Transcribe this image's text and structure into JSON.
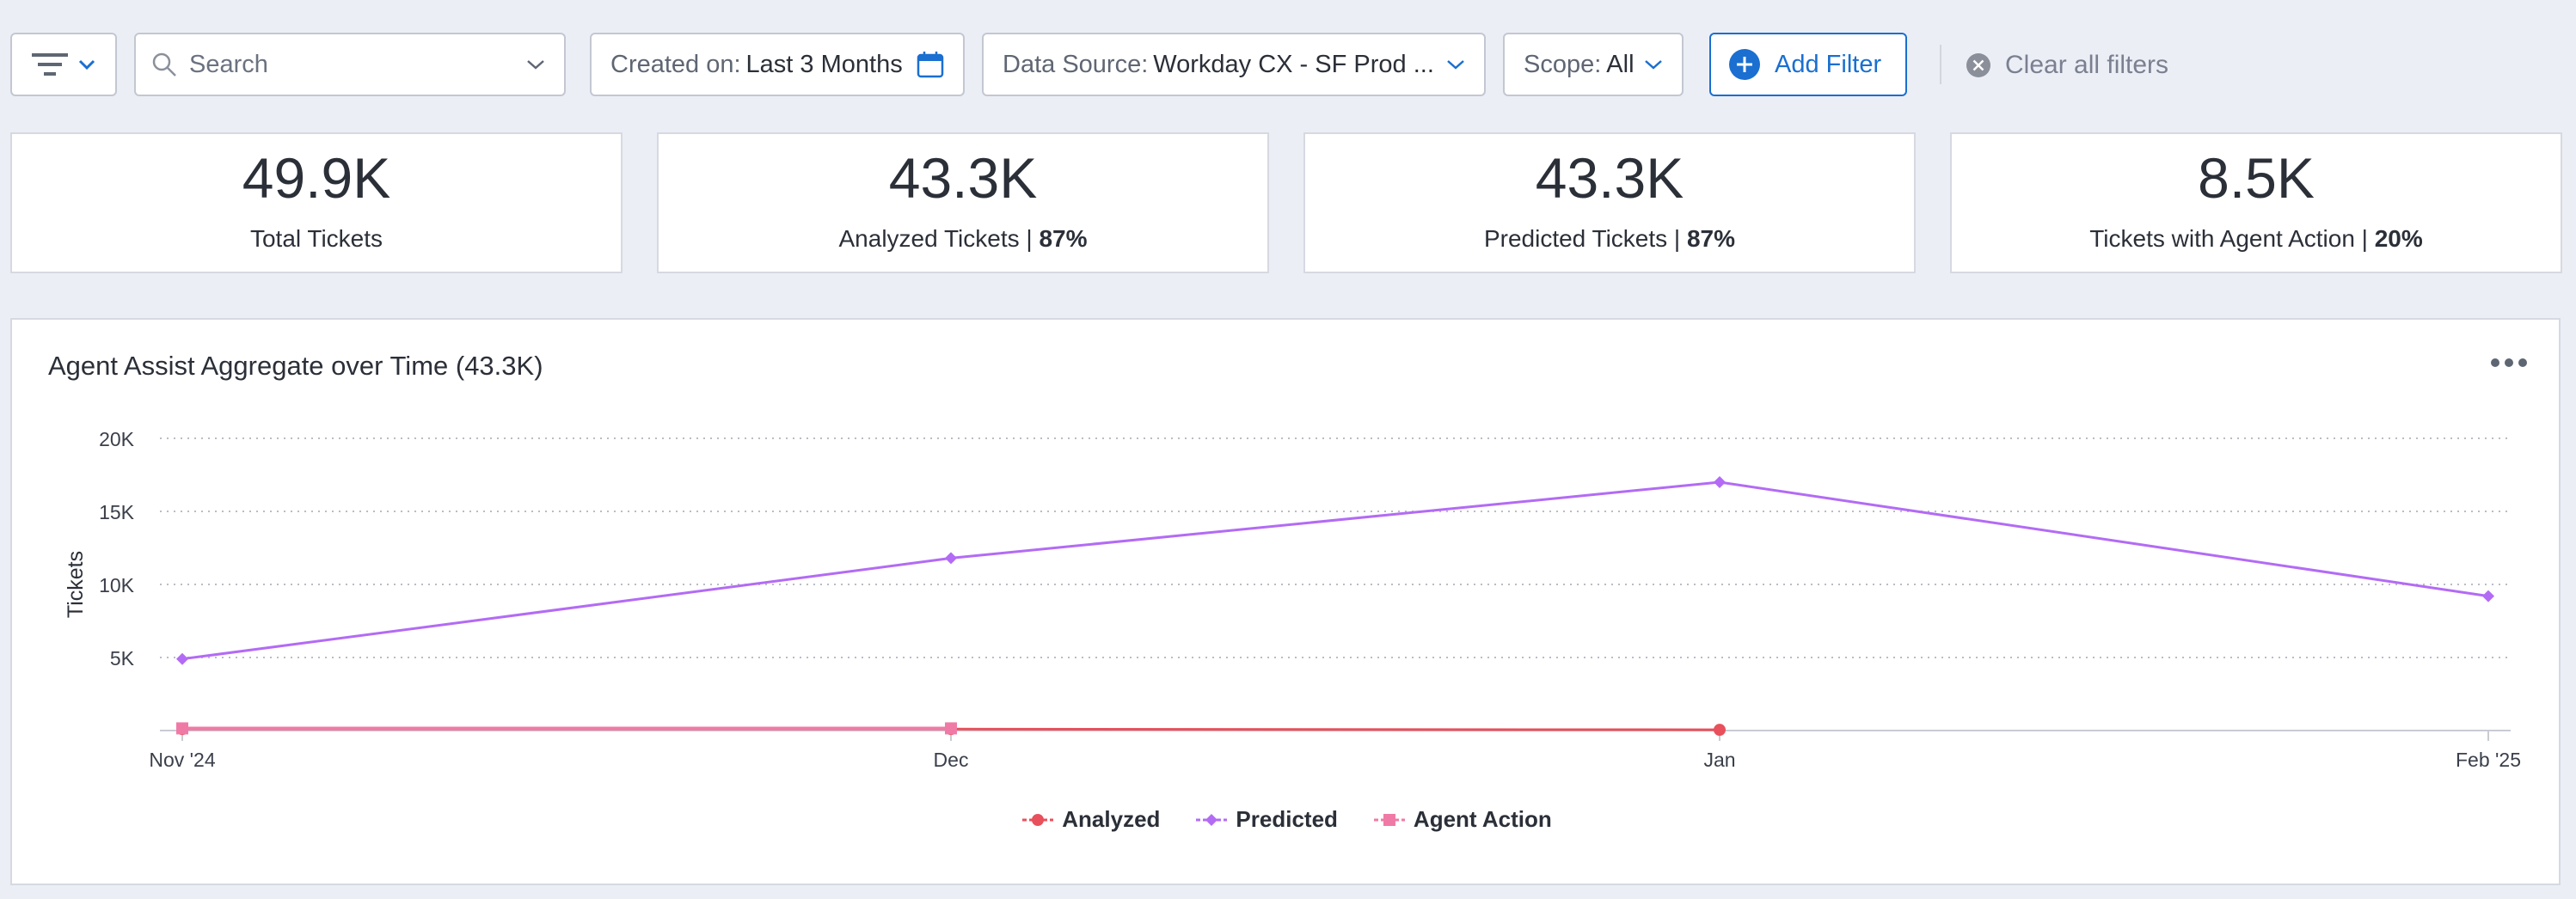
{
  "toolbar": {
    "search_placeholder": "Search",
    "created": {
      "label": "Created on:",
      "value": "Last 3 Months"
    },
    "datasource": {
      "label": "Data Source:",
      "value": "Workday CX - SF Prod ..."
    },
    "scope": {
      "label": "Scope:",
      "value": "All"
    },
    "add_filter": "Add Filter",
    "clear_filters": "Clear all filters"
  },
  "cards": [
    {
      "value": "49.9K",
      "label": "Total Tickets",
      "pct": ""
    },
    {
      "value": "43.3K",
      "label": "Analyzed Tickets | ",
      "pct": "87%"
    },
    {
      "value": "43.3K",
      "label": "Predicted Tickets | ",
      "pct": "87%"
    },
    {
      "value": "8.5K",
      "label": "Tickets with Agent Action | ",
      "pct": "20%"
    }
  ],
  "colors": {
    "accent": "#1a6fd0",
    "analyzed": "#e8505b",
    "predicted": "#b36bf5",
    "agent_action": "#f07aa6"
  },
  "chart_data": {
    "type": "line",
    "title": "Agent Assist Aggregate over Time (43.3K)",
    "ylabel": "Tickets",
    "xlabel": "",
    "x": [
      "Nov '24",
      "Dec",
      "Jan",
      "Feb '25"
    ],
    "ylim": [
      0,
      20000
    ],
    "yticks": [
      5000,
      10000,
      15000,
      20000
    ],
    "ytick_labels": [
      "5K",
      "10K",
      "15K",
      "20K"
    ],
    "grid": true,
    "legend": "bottom",
    "series": [
      {
        "name": "Analyzed",
        "values": [
          100,
          100,
          50,
          null
        ],
        "marker": "circle",
        "color": "#e8505b"
      },
      {
        "name": "Predicted",
        "values": [
          4900,
          11800,
          17000,
          9200
        ],
        "marker": "diamond",
        "color": "#b36bf5"
      },
      {
        "name": "Agent Action",
        "values": [
          150,
          150,
          null,
          null
        ],
        "marker": "square",
        "color": "#f07aa6"
      }
    ]
  }
}
